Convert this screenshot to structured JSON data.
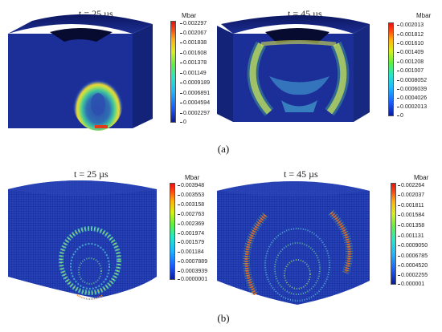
{
  "figure": {
    "caption_a": "(a)",
    "caption_b": "(b)",
    "panels": [
      {
        "title": "t = 25 µs",
        "unit": "Mbar",
        "ticks": [
          "0.002297",
          "0.002067",
          "0.001838",
          "0.001608",
          "0.001378",
          "0.001149",
          "0.0009189",
          "0.0006891",
          "0.0004594",
          "0.0002297",
          "0"
        ],
        "style": "continuum",
        "max_pressure_mbar": 0.002297
      },
      {
        "title": "t = 45 µs",
        "unit": "Mbar",
        "ticks": [
          "0.002013",
          "0.001812",
          "0.001610",
          "0.001409",
          "0.001208",
          "0.001007",
          "0.0008052",
          "0.0006039",
          "0.0004026",
          "0.0002013",
          "0"
        ],
        "style": "continuum",
        "max_pressure_mbar": 0.002013
      },
      {
        "title": "t = 25 µs",
        "unit": "Mbar",
        "ticks": [
          "0.003948",
          "0.003553",
          "0.003158",
          "0.002763",
          "0.002369",
          "0.001974",
          "0.001579",
          "0.001184",
          "0.0007889",
          "0.0003939",
          "0.0000001"
        ],
        "style": "particle",
        "max_pressure_mbar": 0.003948
      },
      {
        "title": "t = 45 µs",
        "unit": "Mbar",
        "ticks": [
          "0.002264",
          "0.002037",
          "0.001811",
          "0.001584",
          "0.001358",
          "0.001131",
          "0.0009050",
          "0.0006785",
          "0.0004520",
          "0.0002255",
          "0.000001"
        ],
        "style": "particle",
        "max_pressure_mbar": 0.002264
      }
    ],
    "colors": {
      "block_blue": "#1a2f9a",
      "block_dark": "#0d1a66",
      "wave_green": "#4fd07a",
      "wave_yellow": "#d8e83a",
      "wave_red": "#e8341c"
    }
  }
}
